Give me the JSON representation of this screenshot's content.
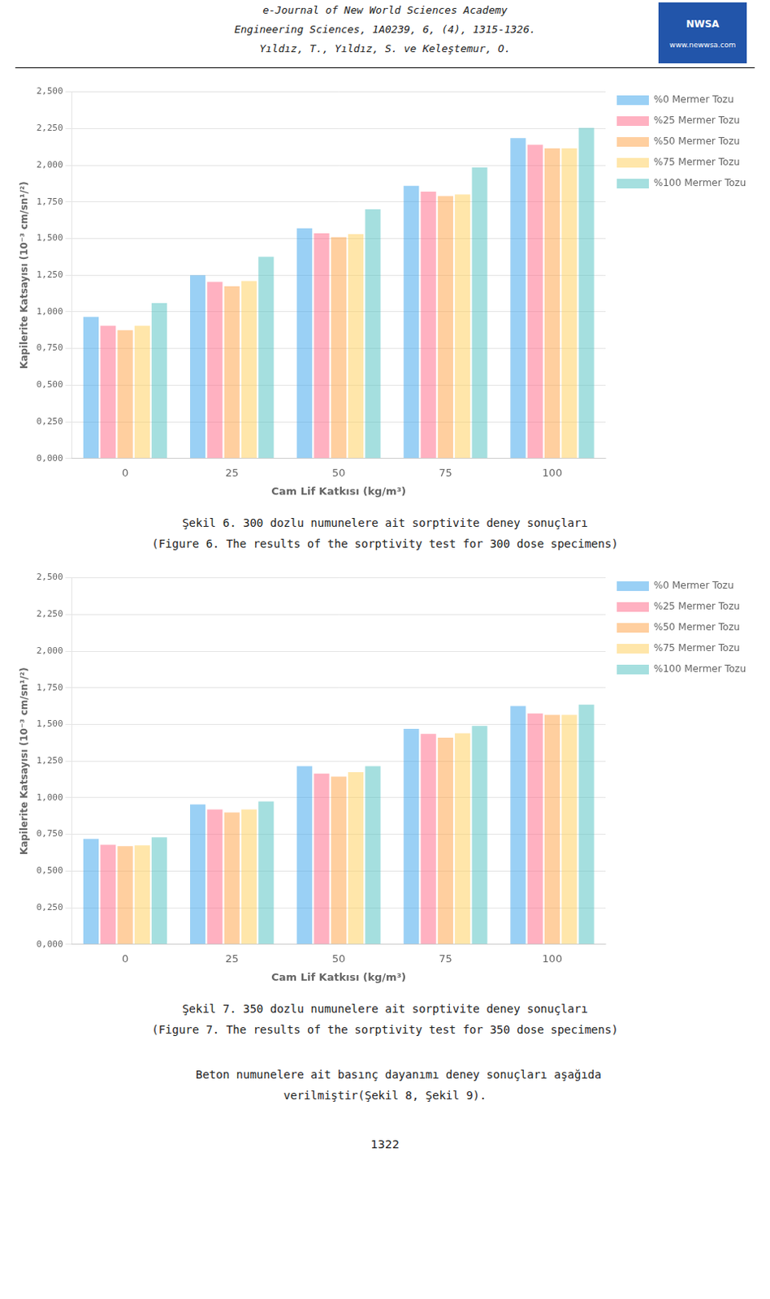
{
  "header": [
    "e-Journal of New World Sciences Academy",
    "Engineering Sciences, 1A0239, 6, (4), 1315-1326.",
    "Yıldız, T., Yıldız, S. ve Keleştemur, O."
  ],
  "logo": [
    "NWSA",
    "www.newwsa.com"
  ],
  "chart_data": [
    {
      "type": "bar",
      "xlabel": "Cam Lif Katkısı (kg/m³)",
      "ylabel": "Kapilerite Katsayısı (10⁻³ cm/sn¹/²)",
      "categories": [
        "0",
        "25",
        "50",
        "75",
        "100"
      ],
      "series": [
        {
          "name": "%0 Mermer Tozu",
          "values": [
            0.965,
            1.25,
            1.57,
            1.86,
            2.185
          ]
        },
        {
          "name": "%25 Mermer Tozu",
          "values": [
            0.905,
            1.205,
            1.535,
            1.82,
            2.14
          ]
        },
        {
          "name": "%50 Mermer Tozu",
          "values": [
            0.875,
            1.175,
            1.51,
            1.79,
            2.115
          ]
        },
        {
          "name": "%75 Mermer Tozu",
          "values": [
            0.905,
            1.21,
            1.53,
            1.8,
            2.115
          ]
        },
        {
          "name": "%100 Mermer Tozu",
          "values": [
            1.06,
            1.375,
            1.7,
            1.985,
            2.255
          ]
        }
      ],
      "ylim": [
        0,
        2.5
      ],
      "yticks": [
        {
          "value": 0,
          "label": "0,000"
        },
        {
          "value": 0.25,
          "label": "0,250"
        },
        {
          "value": 0.5,
          "label": "0,500"
        },
        {
          "value": 0.75,
          "label": "0,750"
        },
        {
          "value": 1.0,
          "label": "1,000"
        },
        {
          "value": 1.25,
          "label": "1,250"
        },
        {
          "value": 1.5,
          "label": "1,500"
        },
        {
          "value": 1.75,
          "label": "1,750"
        },
        {
          "value": 2.0,
          "label": "2,000"
        },
        {
          "value": 2.25,
          "label": "2,250"
        },
        {
          "value": 2.5,
          "label": "2,500"
        }
      ],
      "grid": true,
      "legend": "right",
      "annotations": [
        "Şekil 6. 300 dozlu numunelere ait sorptivite deney sonuçları",
        "(Figure 6. The results of the sorptivity test for 300 dose specimens)"
      ]
    },
    {
      "type": "bar",
      "xlabel": "Cam Lif Katkısı (kg/m³)",
      "ylabel": "Kapilerite Katsayısı (10⁻³ cm/sn¹/²)",
      "categories": [
        "0",
        "25",
        "50",
        "75",
        "100"
      ],
      "series": [
        {
          "name": "%0 Mermer Tozu",
          "values": [
            0.72,
            0.955,
            1.215,
            1.47,
            1.625
          ]
        },
        {
          "name": "%25 Mermer Tozu",
          "values": [
            0.68,
            0.92,
            1.165,
            1.435,
            1.575
          ]
        },
        {
          "name": "%50 Mermer Tozu",
          "values": [
            0.67,
            0.9,
            1.145,
            1.41,
            1.565
          ]
        },
        {
          "name": "%75 Mermer Tozu",
          "values": [
            0.675,
            0.92,
            1.175,
            1.44,
            1.565
          ]
        },
        {
          "name": "%100 Mermer Tozu",
          "values": [
            0.73,
            0.975,
            1.215,
            1.49,
            1.635
          ]
        }
      ],
      "ylim": [
        0,
        2.5
      ],
      "yticks": [
        {
          "value": 0,
          "label": "0,000"
        },
        {
          "value": 0.25,
          "label": "0,250"
        },
        {
          "value": 0.5,
          "label": "0,500"
        },
        {
          "value": 0.75,
          "label": "0,750"
        },
        {
          "value": 1.0,
          "label": "1,000"
        },
        {
          "value": 1.25,
          "label": "1,250"
        },
        {
          "value": 1.5,
          "label": "1,500"
        },
        {
          "value": 1.75,
          "label": "1,750"
        },
        {
          "value": 2.0,
          "label": "2,000"
        },
        {
          "value": 2.25,
          "label": "2,250"
        },
        {
          "value": 2.5,
          "label": "2,500"
        }
      ],
      "grid": true,
      "legend": "right",
      "annotations": [
        "Şekil 7. 350 dozlu numunelere ait sorptivite deney sonuçları",
        "(Figure 7. The results of the sorptivity test for 350 dose specimens)"
      ]
    }
  ],
  "footer": [
    "    Beton numunelere ait basınç dayanımı deney sonuçları aşağıda",
    "verilmiştir(Şekil 8, Şekil 9)."
  ],
  "page_number": "1322"
}
